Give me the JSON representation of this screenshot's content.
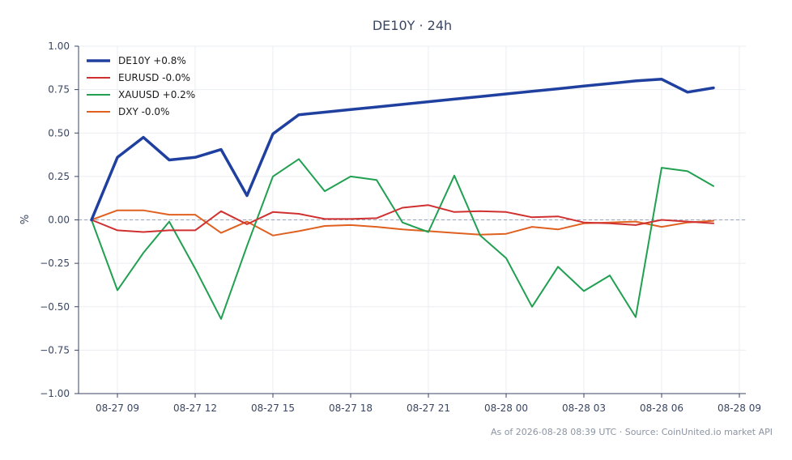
{
  "chart_data": {
    "type": "line",
    "title": "DE10Y · 24h",
    "xlabel": "",
    "ylabel": "%",
    "ylim": [
      -1.0,
      1.0
    ],
    "yticks": [
      "1.00",
      "0.75",
      "0.50",
      "0.25",
      "0.00",
      "−0.25",
      "−0.50",
      "−0.75",
      "−1.00"
    ],
    "ytick_values": [
      1.0,
      0.75,
      0.5,
      0.25,
      0.0,
      -0.25,
      -0.5,
      -0.75,
      -1.0
    ],
    "xlim": [
      "2026-08-27 07:30",
      "2026-08-28 09:15"
    ],
    "xticks": [
      "08-27 09",
      "08-27 12",
      "08-27 15",
      "08-27 18",
      "08-27 21",
      "08-28 00",
      "08-28 03",
      "08-28 06",
      "08-28 09"
    ],
    "xtick_values": [
      "2026-08-27 09:00",
      "2026-08-27 12:00",
      "2026-08-27 15:00",
      "2026-08-27 18:00",
      "2026-08-27 21:00",
      "2026-08-28 00:00",
      "2026-08-28 03:00",
      "2026-08-28 06:00",
      "2026-08-28 09:00"
    ],
    "x": [
      "2026-08-27 08:00",
      "2026-08-27 09:00",
      "2026-08-27 10:00",
      "2026-08-27 11:00",
      "2026-08-27 12:00",
      "2026-08-27 13:00",
      "2026-08-27 14:00",
      "2026-08-27 15:00",
      "2026-08-27 16:00",
      "2026-08-27 17:00",
      "2026-08-27 18:00",
      "2026-08-27 19:00",
      "2026-08-27 20:00",
      "2026-08-27 21:00",
      "2026-08-27 22:00",
      "2026-08-27 23:00",
      "2026-08-28 00:00",
      "2026-08-28 01:00",
      "2026-08-28 02:00",
      "2026-08-28 03:00",
      "2026-08-28 04:00",
      "2026-08-28 05:00",
      "2026-08-28 06:00",
      "2026-08-28 07:00",
      "2026-08-28 08:00"
    ],
    "series": [
      {
        "name": "DE10Y +0.8%",
        "color": "#2040a0",
        "values": [
          0.0,
          0.36,
          0.475,
          0.345,
          0.36,
          0.405,
          0.14,
          0.495,
          0.605,
          0.62,
          0.635,
          0.65,
          0.665,
          0.68,
          0.695,
          0.71,
          0.725,
          0.74,
          0.755,
          0.77,
          0.785,
          0.8,
          0.81,
          0.735,
          0.76
        ]
      },
      {
        "name": "EURUSD -0.0%",
        "color": "#d03030",
        "values": [
          0.0,
          -0.06,
          -0.07,
          -0.06,
          -0.06,
          0.05,
          -0.025,
          0.045,
          0.035,
          0.005,
          0.005,
          0.01,
          0.07,
          0.085,
          0.045,
          0.05,
          0.045,
          0.015,
          0.02,
          -0.015,
          -0.02,
          -0.03,
          0.0,
          -0.01,
          -0.02
        ]
      },
      {
        "name": "XAUUSD +0.2%",
        "color": "#20a050",
        "values": [
          0.0,
          -0.405,
          -0.19,
          -0.01,
          -0.28,
          -0.57,
          -0.15,
          0.25,
          0.35,
          0.165,
          0.25,
          0.23,
          -0.015,
          -0.07,
          0.255,
          -0.09,
          -0.22,
          -0.5,
          -0.27,
          -0.41,
          -0.32,
          -0.56,
          0.3,
          0.28,
          0.195
        ]
      },
      {
        "name": "DXY -0.0%",
        "color": "#e06020",
        "values": [
          0.0,
          0.055,
          0.055,
          0.03,
          0.03,
          -0.075,
          -0.01,
          -0.09,
          -0.065,
          -0.035,
          -0.03,
          -0.04,
          -0.055,
          -0.065,
          -0.075,
          -0.085,
          -0.08,
          -0.04,
          -0.055,
          -0.02,
          -0.015,
          -0.01,
          -0.04,
          -0.015,
          -0.005
        ]
      }
    ],
    "legend": "top-left",
    "grid": true,
    "zero_line": true
  },
  "footer": {
    "note": "As of 2026-08-28 08:39 UTC · Source: CoinUnited.io market API"
  }
}
